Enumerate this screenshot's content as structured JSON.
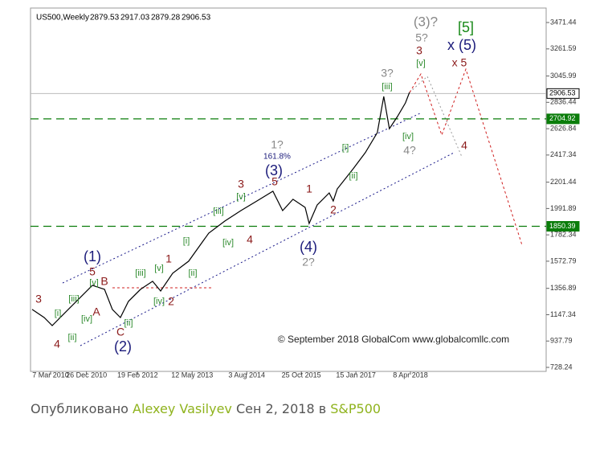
{
  "chart_data": {
    "type": "line",
    "symbol": "US500,Weekly",
    "ohlc": [
      2879.53,
      2917.03,
      2879.28,
      2906.53
    ],
    "x": [
      "2009-10-06",
      "2010-01-13",
      "2010-03-20",
      "2010-06-27",
      "2010-10-04",
      "2011-02-13",
      "2011-05-23",
      "2011-07-27",
      "2011-10-01",
      "2011-12-06",
      "2012-03-14",
      "2012-06-21",
      "2012-08-26",
      "2012-12-03",
      "2013-04-13",
      "2013-09-25",
      "2014-02-04",
      "2014-06-16",
      "2014-10-26",
      "2015-03-06",
      "2015-05-25",
      "2015-08-18",
      "2015-11-25",
      "2015-12-28",
      "2016-03-03",
      "2016-06-10",
      "2016-07-13",
      "2016-08-15",
      "2016-12-24",
      "2017-04-02",
      "2017-07-10",
      "2017-09-01",
      "2017-10-17",
      "2017-12-22",
      "2018-02-26",
      "2018-03-31"
    ],
    "series": [
      {
        "color": "#000000",
        "values": [
          1189,
          1125,
          1061,
          1157,
          1253,
          1381,
          1349,
          1189,
          1125,
          1253,
          1349,
          1413,
          1336,
          1477,
          1573,
          1796,
          1892,
          1975,
          2052,
          2129,
          1975,
          2065,
          2001,
          1873,
          2020,
          2116,
          2052,
          2148,
          2308,
          2436,
          2596,
          2883,
          2627,
          2723,
          2832,
          2915
        ]
      }
    ],
    "xlim": [
      "2009-09-23",
      "2021-04-26"
    ],
    "xticks": [
      {
        "value": "2010-03-07",
        "label": "7 Mar 2010"
      },
      {
        "value": "2010-12-26",
        "label": "26 Dec 2010"
      },
      {
        "value": "2012-02-19",
        "label": "19 Feb 2012"
      },
      {
        "value": "2013-05-12",
        "label": "12 May 2013"
      },
      {
        "value": "2014-08-03",
        "label": "3 Aug 2014"
      },
      {
        "value": "2015-10-25",
        "label": "25 Oct 2015"
      },
      {
        "value": "2017-01-15",
        "label": "15 Jan 2017"
      },
      {
        "value": "2018-04-08",
        "label": "8 Apr 2018"
      }
    ],
    "ylim": [
      728.24,
      3471.44
    ],
    "yticks": [
      728.24,
      937.79,
      1147.34,
      1356.89,
      1572.79,
      1782.34,
      1991.89,
      2201.44,
      2417.34,
      2626.84,
      2836.44,
      3045.99,
      3261.59,
      3471.44
    ],
    "levels": [
      {
        "value": 2906.53,
        "color": "#bbbbbb",
        "style": "solid"
      },
      {
        "value": 2704.92,
        "color": "#0a7d0a",
        "style": "dashed"
      },
      {
        "value": 1850.39,
        "color": "#0a7d0a",
        "style": "dashed"
      }
    ],
    "annotations": [
      {
        "text": "(3)?",
        "color": "#888888"
      },
      {
        "text": "[5]",
        "color": "#1a8a1a"
      },
      {
        "text": "5?",
        "color": "#888888"
      },
      {
        "text": "3",
        "color": "#8b1a1a"
      },
      {
        "text": "x (5)",
        "color": "#1a1a7a"
      },
      {
        "text": "[v]",
        "color": "#2e8b2e"
      },
      {
        "text": "x 5",
        "color": "#8b1a1a"
      },
      {
        "text": "3?",
        "color": "#888888"
      },
      {
        "text": "[iii]",
        "color": "#2e8b2e"
      },
      {
        "text": "[iv]",
        "color": "#2e8b2e"
      },
      {
        "text": "4?",
        "color": "#888888"
      },
      {
        "text": "4",
        "color": "#8b1a1a"
      },
      {
        "text": "[i]",
        "color": "#2e8b2e"
      },
      {
        "text": "[ii]",
        "color": "#2e8b2e"
      },
      {
        "text": "1?",
        "color": "#888888"
      },
      {
        "text": "161.8%",
        "color": "#1a1a7a"
      },
      {
        "text": "(3)",
        "color": "#1a1a7a"
      },
      {
        "text": "3",
        "color": "#8b1a1a"
      },
      {
        "text": "5",
        "color": "#8b1a1a"
      },
      {
        "text": "[v]",
        "color": "#2e8b2e"
      },
      {
        "text": "1",
        "color": "#8b1a1a"
      },
      {
        "text": "2",
        "color": "#8b1a1a"
      },
      {
        "text": "[iii]",
        "color": "#2e8b2e"
      },
      {
        "text": "[i]",
        "color": "#2e8b2e"
      },
      {
        "text": "[iv]",
        "color": "#2e8b2e"
      },
      {
        "text": "4",
        "color": "#8b1a1a"
      },
      {
        "text": "(4)",
        "color": "#1a1a7a"
      },
      {
        "text": "2?",
        "color": "#888888"
      },
      {
        "text": "[ii]",
        "color": "#2e8b2e"
      },
      {
        "text": "(1)",
        "color": "#1a1a7a"
      },
      {
        "text": "1",
        "color": "#8b1a1a"
      },
      {
        "text": "5",
        "color": "#8b1a1a"
      },
      {
        "text": "[v]",
        "color": "#2e8b2e"
      },
      {
        "text": "[iii]",
        "color": "#2e8b2e"
      },
      {
        "text": "[v]",
        "color": "#2e8b2e"
      },
      {
        "text": "B",
        "color": "#8b1a1a"
      },
      {
        "text": "[iii]",
        "color": "#2e8b2e"
      },
      {
        "text": "A",
        "color": "#8b1a1a"
      },
      {
        "text": "[iv]",
        "color": "#2e8b2e"
      },
      {
        "text": "[i]",
        "color": "#2e8b2e"
      },
      {
        "text": "3",
        "color": "#8b1a1a"
      },
      {
        "text": "4",
        "color": "#8b1a1a"
      },
      {
        "text": "[ii]",
        "color": "#2e8b2e"
      },
      {
        "text": "C",
        "color": "#8b1a1a"
      },
      {
        "text": "[ii]",
        "color": "#2e8b2e"
      },
      {
        "text": "(2)",
        "color": "#1a1a7a"
      },
      {
        "text": "[iv]",
        "color": "#2e8b2e"
      },
      {
        "text": "2",
        "color": "#8b1a1a"
      }
    ],
    "copyright": "© September 2018 GlobalCom www.globalcomllc.com"
  },
  "footer": {
    "prefix": "Опубликовано",
    "author": "Alexey Vasilyev",
    "date": "Сен 2, 2018",
    "in": "в",
    "idea": "S&P500"
  }
}
